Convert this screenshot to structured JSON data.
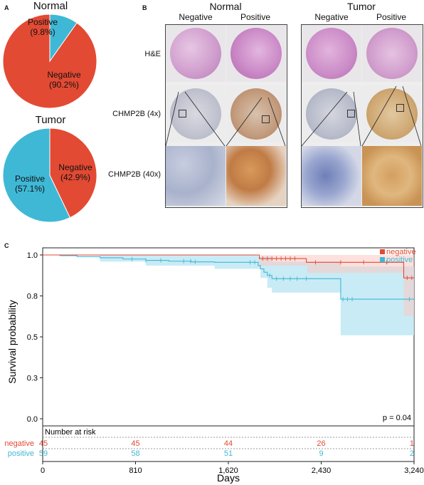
{
  "panel_a": {
    "letter": "A",
    "normal_title": "Normal",
    "tumor_title": "Tumor",
    "normal_positive": "Positive",
    "normal_positive_pct": "(9.8%)",
    "normal_negative": "Negative",
    "normal_negative_pct": "(90.2%)",
    "tumor_positive": "Positive",
    "tumor_positive_pct": "(57.1%)",
    "tumor_negative": "Negative",
    "tumor_negative_pct": "(42.9%)"
  },
  "panel_b": {
    "letter": "B",
    "normal_title": "Normal",
    "tumor_title": "Tumor",
    "col_negative": "Negative",
    "col_positive": "Positive",
    "row_he": "H&E",
    "row_4x": "CHMP2B (4x)",
    "row_40x": "CHMP2B (40x)"
  },
  "panel_c": {
    "letter": "C",
    "ylabel": "Survival probability",
    "xlabel": "Days",
    "pvalue": "p = 0.04",
    "risk_title": "Number at risk",
    "legend_negative": "negative",
    "legend_positive": "positive",
    "xticks": [
      "0",
      "810",
      "1,620",
      "2,430",
      "3,240"
    ],
    "yticks": [
      "0.0",
      "0.3",
      "0.5",
      "0.8",
      "1.0"
    ],
    "risk_negative": [
      "45",
      "45",
      "44",
      "26",
      "1"
    ],
    "risk_positive": [
      "59",
      "58",
      "51",
      "9",
      "2"
    ]
  },
  "colors": {
    "negative": "#e34a33",
    "positive": "#3fb8d6",
    "negative_band": "#f9c9c2",
    "positive_band": "#bfe8f3",
    "overlap_band": "#d4d4d4"
  },
  "chart_data": [
    {
      "type": "pie",
      "title": "Normal",
      "labels": [
        "Positive",
        "Negative"
      ],
      "values": [
        9.8,
        90.2
      ]
    },
    {
      "type": "pie",
      "title": "Tumor",
      "labels": [
        "Positive",
        "Negative"
      ],
      "values": [
        57.1,
        42.9
      ]
    },
    {
      "type": "line",
      "xlabel": "Days",
      "ylabel": "Survival probability",
      "xlim": [
        0,
        3240
      ],
      "ylim": [
        0,
        1
      ],
      "xticks": [
        0,
        810,
        1620,
        2430,
        3240
      ],
      "yticks": [
        0.0,
        0.25,
        0.5,
        0.75,
        1.0
      ],
      "series": [
        {
          "name": "negative",
          "steps": [
            [
              0,
              1.0
            ],
            [
              1880,
              1.0
            ],
            [
              1890,
              0.978
            ],
            [
              2275,
              0.978
            ],
            [
              2300,
              0.955
            ],
            [
              3140,
              0.955
            ],
            [
              3150,
              0.86
            ],
            [
              3240,
              0.86
            ]
          ],
          "ci_upper": [
            [
              0,
              1.0
            ],
            [
              3240,
              1.0
            ]
          ],
          "ci_lower": [
            [
              0,
              1.0
            ],
            [
              1880,
              1.0
            ],
            [
              1890,
              0.935
            ],
            [
              2300,
              0.935
            ],
            [
              2310,
              0.89
            ],
            [
              3140,
              0.89
            ],
            [
              3150,
              0.63
            ],
            [
              3240,
              0.63
            ]
          ],
          "censored": [
            1920,
            1960,
            2000,
            2040,
            2080,
            2120,
            2160,
            2200,
            2380,
            2600,
            2800,
            3000,
            3180,
            3220
          ]
        },
        {
          "name": "positive",
          "steps": [
            [
              0,
              1.0
            ],
            [
              150,
              0.996
            ],
            [
              300,
              0.99
            ],
            [
              500,
              0.983
            ],
            [
              700,
              0.975
            ],
            [
              900,
              0.967
            ],
            [
              1100,
              0.962
            ],
            [
              1300,
              0.958
            ],
            [
              1500,
              0.955
            ],
            [
              1870,
              0.955
            ],
            [
              1880,
              0.935
            ],
            [
              1900,
              0.915
            ],
            [
              1930,
              0.895
            ],
            [
              1960,
              0.875
            ],
            [
              2000,
              0.855
            ],
            [
              2580,
              0.855
            ],
            [
              2600,
              0.73
            ],
            [
              3240,
              0.73
            ]
          ],
          "ci_upper": [
            [
              0,
              1.0
            ],
            [
              1870,
              1.0
            ],
            [
              1880,
              0.99
            ],
            [
              2000,
              0.96
            ],
            [
              2580,
              0.96
            ],
            [
              2600,
              0.93
            ],
            [
              3240,
              0.93
            ]
          ],
          "ci_lower": [
            [
              0,
              1.0
            ],
            [
              500,
              0.96
            ],
            [
              900,
              0.935
            ],
            [
              1500,
              0.915
            ],
            [
              1870,
              0.915
            ],
            [
              1900,
              0.86
            ],
            [
              1960,
              0.8
            ],
            [
              2000,
              0.77
            ],
            [
              2580,
              0.77
            ],
            [
              2600,
              0.51
            ],
            [
              3240,
              0.51
            ]
          ],
          "censored": [
            780,
            900,
            1030,
            1230,
            1290,
            1330,
            1810,
            1850,
            1980,
            2040,
            2100,
            2160,
            2220,
            2300,
            2620,
            2660,
            2700,
            3200
          ]
        }
      ],
      "annotation": "p = 0.04",
      "risk_table": {
        "title": "Number at risk",
        "times": [
          0,
          810,
          1620,
          2430,
          3240
        ],
        "negative": [
          45,
          45,
          44,
          26,
          1
        ],
        "positive": [
          59,
          58,
          51,
          9,
          2
        ]
      }
    }
  ]
}
